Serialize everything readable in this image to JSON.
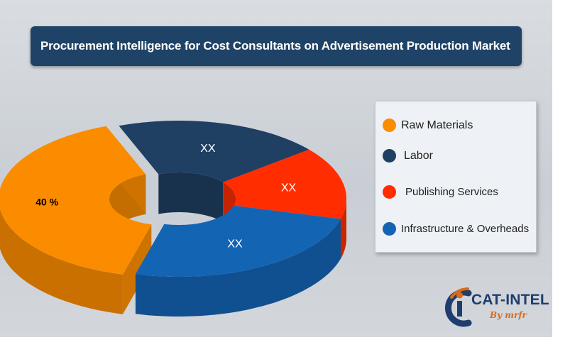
{
  "title": "Procurement Intelligence for Cost Consultants on Advertisement Production Market",
  "chart_data": {
    "type": "pie",
    "style": "3d-donut",
    "title": "Procurement Intelligence for Cost Consultants on Advertisement Production Market",
    "categories": [
      "Raw Materials",
      "Labor",
      "Publishing Services",
      "Infrastructure & Overheads"
    ],
    "values": [
      40,
      20,
      15,
      25
    ],
    "value_labels": [
      "40 %",
      "XX",
      "XX",
      "XX"
    ],
    "colors": [
      "#fb8c00",
      "#1f3f63",
      "#ff2d00",
      "#1464b4"
    ],
    "legend_position": "right"
  },
  "legend": {
    "items": [
      {
        "label": "Raw Materials",
        "color": "#fb8c00"
      },
      {
        "label": "Labor",
        "color": "#1f3f63"
      },
      {
        "label": "Publishing Services",
        "color": "#ff2d00"
      },
      {
        "label": "Infrastructure & Overheads",
        "color": "#1464b4"
      }
    ]
  },
  "logo": {
    "text": "CAT-INTEL",
    "sub": "By mrfr",
    "primary_color": "#1f3e6e",
    "accent_color": "#d96b1a"
  }
}
